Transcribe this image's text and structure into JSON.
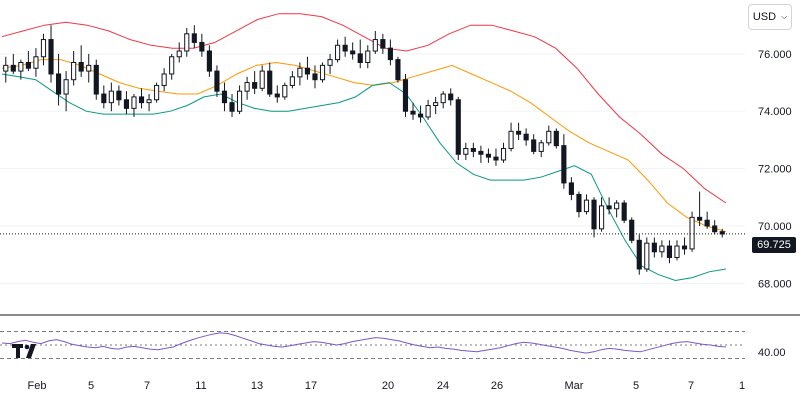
{
  "currency": {
    "label": "USD",
    "chevron_icon": "chevron-down-icon"
  },
  "logo": {
    "name": "tradingview-logo-icon"
  },
  "chart_data": [
    {
      "type": "candlestick",
      "overlays": [
        "bollinger-upper",
        "bollinger-middle",
        "bollinger-lower"
      ],
      "last_price_label": "69.725",
      "last_price": 69.725,
      "ylim": [
        67.0,
        77.6
      ],
      "y_ticks": [
        "76.000",
        "74.000",
        "72.000",
        "70.000",
        "68.000"
      ],
      "x_ticks": [
        "Feb",
        "5",
        "7",
        "11",
        "13",
        "17",
        "20",
        "24",
        "26",
        "Mar",
        "5",
        "7",
        "1"
      ],
      "colors": {
        "candle": "#131722",
        "upper": "#f23645",
        "middle": "#ff9800",
        "lower": "#089981"
      },
      "upper_band": [
        76.6,
        76.8,
        77.0,
        77.1,
        77.0,
        76.8,
        76.5,
        76.3,
        76.2,
        76.2,
        76.4,
        76.8,
        77.2,
        77.4,
        77.4,
        77.3,
        77.0,
        76.6,
        76.2,
        76.1,
        76.3,
        76.7,
        77.0,
        77.0,
        76.8,
        76.6,
        76.2,
        75.5,
        74.6,
        73.8,
        73.2,
        72.5,
        72.0,
        71.3,
        70.8
      ],
      "middle_band": [
        75.5,
        75.6,
        75.8,
        75.8,
        75.6,
        75.3,
        75.0,
        74.8,
        74.7,
        74.6,
        74.6,
        74.9,
        75.3,
        75.6,
        75.7,
        75.6,
        75.4,
        75.2,
        75.0,
        74.9,
        75.0,
        75.2,
        75.4,
        75.6,
        75.3,
        75.0,
        74.7,
        74.3,
        73.8,
        73.3,
        72.9,
        72.6,
        72.3,
        71.6,
        70.8,
        70.3,
        70.0,
        69.8
      ],
      "lower_band": [
        75.3,
        75.2,
        75.1,
        74.7,
        74.3,
        74.0,
        73.9,
        73.9,
        73.9,
        73.9,
        74.0,
        74.2,
        74.5,
        74.6,
        74.3,
        74.1,
        74.0,
        74.0,
        74.1,
        74.2,
        74.3,
        74.5,
        74.9,
        75.0,
        74.6,
        73.8,
        72.9,
        72.2,
        71.8,
        71.6,
        71.6,
        71.6,
        71.7,
        71.9,
        72.1,
        71.8,
        70.6,
        69.5,
        68.6,
        68.3,
        68.1,
        68.2,
        68.4,
        68.5
      ],
      "candles": [
        {
          "o": 75.4,
          "h": 75.9,
          "l": 75.0,
          "c": 75.6
        },
        {
          "o": 75.6,
          "h": 76.0,
          "l": 75.3,
          "c": 75.4
        },
        {
          "o": 75.4,
          "h": 75.8,
          "l": 75.1,
          "c": 75.7
        },
        {
          "o": 75.7,
          "h": 76.1,
          "l": 75.4,
          "c": 75.5
        },
        {
          "o": 75.5,
          "h": 76.2,
          "l": 75.2,
          "c": 75.9
        },
        {
          "o": 75.9,
          "h": 76.7,
          "l": 75.6,
          "c": 76.5
        },
        {
          "o": 76.5,
          "h": 77.0,
          "l": 75.0,
          "c": 75.3
        },
        {
          "o": 75.3,
          "h": 76.0,
          "l": 74.2,
          "c": 74.6
        },
        {
          "o": 74.6,
          "h": 75.4,
          "l": 74.0,
          "c": 75.1
        },
        {
          "o": 75.1,
          "h": 76.1,
          "l": 74.9,
          "c": 75.7
        },
        {
          "o": 75.7,
          "h": 76.3,
          "l": 75.2,
          "c": 75.4
        },
        {
          "o": 75.4,
          "h": 76.0,
          "l": 75.0,
          "c": 75.6
        },
        {
          "o": 75.6,
          "h": 75.8,
          "l": 74.4,
          "c": 74.6
        },
        {
          "o": 74.6,
          "h": 74.9,
          "l": 74.1,
          "c": 74.3
        },
        {
          "o": 74.3,
          "h": 75.0,
          "l": 74.0,
          "c": 74.7
        },
        {
          "o": 74.7,
          "h": 74.9,
          "l": 74.2,
          "c": 74.4
        },
        {
          "o": 74.4,
          "h": 74.7,
          "l": 73.9,
          "c": 74.1
        },
        {
          "o": 74.1,
          "h": 74.6,
          "l": 73.8,
          "c": 74.5
        },
        {
          "o": 74.5,
          "h": 74.8,
          "l": 74.1,
          "c": 74.3
        },
        {
          "o": 74.3,
          "h": 74.6,
          "l": 74.0,
          "c": 74.4
        },
        {
          "o": 74.4,
          "h": 75.0,
          "l": 74.3,
          "c": 74.9
        },
        {
          "o": 74.9,
          "h": 75.5,
          "l": 74.7,
          "c": 75.3
        },
        {
          "o": 75.3,
          "h": 76.0,
          "l": 75.1,
          "c": 75.9
        },
        {
          "o": 75.9,
          "h": 76.4,
          "l": 75.7,
          "c": 76.1
        },
        {
          "o": 76.1,
          "h": 76.9,
          "l": 75.9,
          "c": 76.7
        },
        {
          "o": 76.7,
          "h": 77.0,
          "l": 76.2,
          "c": 76.4
        },
        {
          "o": 76.4,
          "h": 76.7,
          "l": 75.9,
          "c": 76.1
        },
        {
          "o": 76.1,
          "h": 76.3,
          "l": 75.2,
          "c": 75.4
        },
        {
          "o": 75.4,
          "h": 75.6,
          "l": 74.5,
          "c": 74.7
        },
        {
          "o": 74.7,
          "h": 75.0,
          "l": 74.0,
          "c": 74.3
        },
        {
          "o": 74.3,
          "h": 74.6,
          "l": 73.8,
          "c": 74.0
        },
        {
          "o": 74.0,
          "h": 74.9,
          "l": 73.9,
          "c": 74.7
        },
        {
          "o": 74.7,
          "h": 75.2,
          "l": 74.4,
          "c": 75.0
        },
        {
          "o": 75.0,
          "h": 75.4,
          "l": 74.6,
          "c": 74.8
        },
        {
          "o": 74.8,
          "h": 75.6,
          "l": 74.7,
          "c": 75.4
        },
        {
          "o": 75.4,
          "h": 75.7,
          "l": 74.5,
          "c": 74.6
        },
        {
          "o": 74.6,
          "h": 74.9,
          "l": 74.3,
          "c": 74.5
        },
        {
          "o": 74.5,
          "h": 75.0,
          "l": 74.4,
          "c": 74.9
        },
        {
          "o": 74.9,
          "h": 75.4,
          "l": 74.8,
          "c": 75.2
        },
        {
          "o": 75.2,
          "h": 75.7,
          "l": 74.9,
          "c": 75.5
        },
        {
          "o": 75.5,
          "h": 75.9,
          "l": 75.1,
          "c": 75.3
        },
        {
          "o": 75.3,
          "h": 75.6,
          "l": 74.8,
          "c": 75.1
        },
        {
          "o": 75.1,
          "h": 75.7,
          "l": 75.0,
          "c": 75.6
        },
        {
          "o": 75.6,
          "h": 76.0,
          "l": 75.3,
          "c": 75.8
        },
        {
          "o": 75.8,
          "h": 76.5,
          "l": 75.7,
          "c": 76.3
        },
        {
          "o": 76.3,
          "h": 76.6,
          "l": 75.9,
          "c": 76.1
        },
        {
          "o": 76.1,
          "h": 76.4,
          "l": 75.8,
          "c": 76.0
        },
        {
          "o": 76.0,
          "h": 76.5,
          "l": 75.5,
          "c": 75.7
        },
        {
          "o": 75.7,
          "h": 76.3,
          "l": 75.5,
          "c": 76.1
        },
        {
          "o": 76.1,
          "h": 76.8,
          "l": 76.0,
          "c": 76.5
        },
        {
          "o": 76.5,
          "h": 76.7,
          "l": 76.0,
          "c": 76.2
        },
        {
          "o": 76.2,
          "h": 76.5,
          "l": 75.6,
          "c": 75.8
        },
        {
          "o": 75.8,
          "h": 75.9,
          "l": 75.0,
          "c": 75.1
        },
        {
          "o": 75.1,
          "h": 75.3,
          "l": 73.8,
          "c": 74.0
        },
        {
          "o": 74.0,
          "h": 74.3,
          "l": 73.7,
          "c": 73.9
        },
        {
          "o": 73.9,
          "h": 74.2,
          "l": 73.6,
          "c": 73.8
        },
        {
          "o": 73.8,
          "h": 74.4,
          "l": 73.7,
          "c": 74.2
        },
        {
          "o": 74.2,
          "h": 74.5,
          "l": 73.9,
          "c": 74.3
        },
        {
          "o": 74.3,
          "h": 74.7,
          "l": 74.1,
          "c": 74.6
        },
        {
          "o": 74.6,
          "h": 74.8,
          "l": 74.2,
          "c": 74.4
        },
        {
          "o": 74.4,
          "h": 74.5,
          "l": 72.3,
          "c": 72.5
        },
        {
          "o": 72.5,
          "h": 72.9,
          "l": 72.3,
          "c": 72.7
        },
        {
          "o": 72.7,
          "h": 72.9,
          "l": 72.4,
          "c": 72.6
        },
        {
          "o": 72.6,
          "h": 72.8,
          "l": 72.2,
          "c": 72.5
        },
        {
          "o": 72.5,
          "h": 72.7,
          "l": 72.2,
          "c": 72.4
        },
        {
          "o": 72.4,
          "h": 72.7,
          "l": 72.1,
          "c": 72.3
        },
        {
          "o": 72.3,
          "h": 72.9,
          "l": 72.2,
          "c": 72.7
        },
        {
          "o": 72.7,
          "h": 73.6,
          "l": 72.6,
          "c": 73.3
        },
        {
          "o": 73.3,
          "h": 73.6,
          "l": 73.0,
          "c": 73.2
        },
        {
          "o": 73.2,
          "h": 73.4,
          "l": 72.8,
          "c": 73.0
        },
        {
          "o": 73.0,
          "h": 73.2,
          "l": 72.5,
          "c": 72.6
        },
        {
          "o": 72.6,
          "h": 73.0,
          "l": 72.4,
          "c": 72.9
        },
        {
          "o": 72.9,
          "h": 73.5,
          "l": 72.8,
          "c": 73.3
        },
        {
          "o": 73.3,
          "h": 73.4,
          "l": 72.7,
          "c": 72.8
        },
        {
          "o": 72.8,
          "h": 73.2,
          "l": 71.3,
          "c": 71.5
        },
        {
          "o": 71.5,
          "h": 71.7,
          "l": 70.9,
          "c": 71.1
        },
        {
          "o": 71.1,
          "h": 71.2,
          "l": 70.3,
          "c": 70.5
        },
        {
          "o": 70.5,
          "h": 71.1,
          "l": 70.4,
          "c": 70.9
        },
        {
          "o": 70.9,
          "h": 71.0,
          "l": 69.6,
          "c": 69.9
        },
        {
          "o": 69.9,
          "h": 71.0,
          "l": 69.8,
          "c": 70.7
        },
        {
          "o": 70.7,
          "h": 71.0,
          "l": 70.4,
          "c": 70.6
        },
        {
          "o": 70.6,
          "h": 70.9,
          "l": 70.3,
          "c": 70.8
        },
        {
          "o": 70.8,
          "h": 70.9,
          "l": 70.1,
          "c": 70.2
        },
        {
          "o": 70.2,
          "h": 70.3,
          "l": 69.4,
          "c": 69.5
        },
        {
          "o": 69.5,
          "h": 69.7,
          "l": 68.3,
          "c": 68.5
        },
        {
          "o": 68.5,
          "h": 69.6,
          "l": 68.4,
          "c": 69.4
        },
        {
          "o": 69.4,
          "h": 69.6,
          "l": 68.9,
          "c": 69.1
        },
        {
          "o": 69.1,
          "h": 69.5,
          "l": 68.9,
          "c": 69.3
        },
        {
          "o": 69.3,
          "h": 69.5,
          "l": 68.7,
          "c": 68.9
        },
        {
          "o": 68.9,
          "h": 69.5,
          "l": 68.8,
          "c": 69.3
        },
        {
          "o": 69.3,
          "h": 69.6,
          "l": 69.0,
          "c": 69.2
        },
        {
          "o": 69.2,
          "h": 70.5,
          "l": 69.1,
          "c": 70.3
        },
        {
          "o": 70.3,
          "h": 71.2,
          "l": 70.0,
          "c": 70.2
        },
        {
          "o": 70.2,
          "h": 70.5,
          "l": 69.9,
          "c": 70.0
        },
        {
          "o": 70.0,
          "h": 70.2,
          "l": 69.7,
          "c": 69.8
        },
        {
          "o": 69.8,
          "h": 69.9,
          "l": 69.6,
          "c": 69.72
        }
      ]
    },
    {
      "type": "line",
      "indicator": "oscillator",
      "ylim": [
        10,
        90
      ],
      "y_ticks": [
        "40.00"
      ],
      "levels": [
        70,
        50,
        30
      ],
      "color": "#7e57c2",
      "values": [
        53,
        52,
        55,
        57,
        54,
        52,
        56,
        58,
        55,
        51,
        49,
        47,
        46,
        48,
        45,
        44,
        47,
        48,
        46,
        44,
        43,
        45,
        47,
        52,
        56,
        60,
        63,
        66,
        68,
        67,
        64,
        60,
        56,
        52,
        50,
        48,
        47,
        49,
        51,
        53,
        55,
        54,
        52,
        50,
        52,
        55,
        57,
        59,
        61,
        60,
        58,
        56,
        53,
        50,
        48,
        46,
        47,
        45,
        44,
        42,
        41,
        40,
        42,
        44,
        46,
        49,
        52,
        54,
        53,
        51,
        49,
        47,
        45,
        42,
        40,
        38,
        40,
        43,
        45,
        44,
        42,
        41,
        40,
        43,
        46,
        49,
        52,
        54,
        55,
        53,
        51,
        50,
        48,
        47
      ]
    }
  ]
}
